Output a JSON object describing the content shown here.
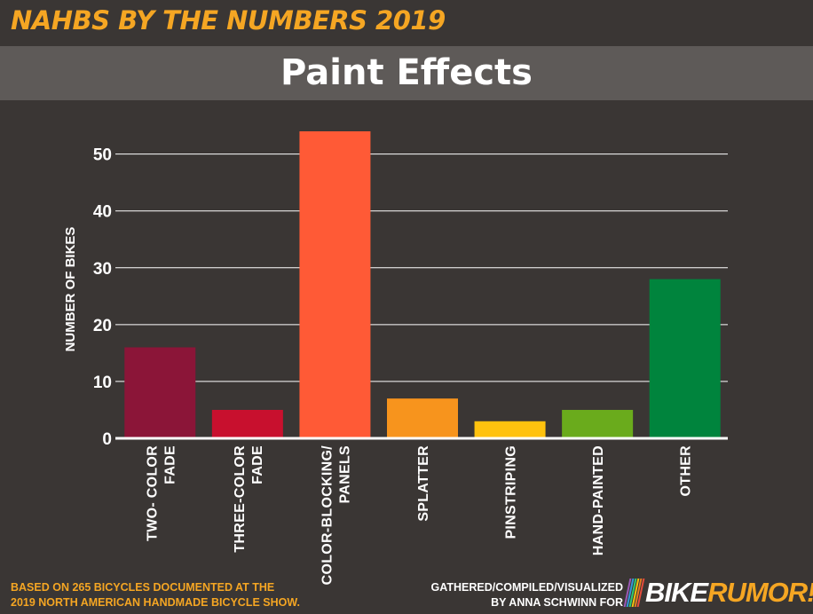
{
  "header": {
    "title": "NAHBS BY THE NUMBERS 2019",
    "subtitle": "Paint Effects"
  },
  "colors": {
    "background": "#3a3634",
    "band": "#5e5a58",
    "accent": "#f5a623"
  },
  "chart_data": {
    "type": "bar",
    "title": "Paint Effects",
    "xlabel": "",
    "ylabel": "NUMBER OF BIKES",
    "ylim": [
      0,
      54
    ],
    "yticks": [
      0,
      10,
      20,
      30,
      40,
      50
    ],
    "grid": true,
    "categories": [
      [
        "TWO- COLOR",
        "FADE"
      ],
      [
        "THREE-COLOR",
        "FADE"
      ],
      [
        "COLOR-BLOCKING/",
        "PANELS"
      ],
      [
        "SPLATTER"
      ],
      [
        "PINSTRIPING"
      ],
      [
        "HAND-PAINTED"
      ],
      [
        "OTHER"
      ]
    ],
    "values": [
      16,
      5,
      54,
      7,
      3,
      5,
      28
    ],
    "bar_colors": [
      "#8b1538",
      "#c8102e",
      "#ff5a36",
      "#f7941d",
      "#ffc20e",
      "#6aab1c",
      "#00843d"
    ]
  },
  "footer": {
    "source_line1": "BASED ON 265 BICYCLES DOCUMENTED AT THE",
    "source_line2": "2019 NORTH AMERICAN HANDMADE BICYCLE SHOW.",
    "credit_line1": "GATHERED/COMPILED/VISUALIZED",
    "credit_line2": "BY ANNA SCHWINN FOR",
    "logo_part1": "BIKE",
    "logo_part2": "RUMOR!",
    "logo_stripe_colors": [
      "#9b59b6",
      "#3498db",
      "#2ecc71",
      "#f1c40f",
      "#e67e22",
      "#e74c3c"
    ]
  }
}
